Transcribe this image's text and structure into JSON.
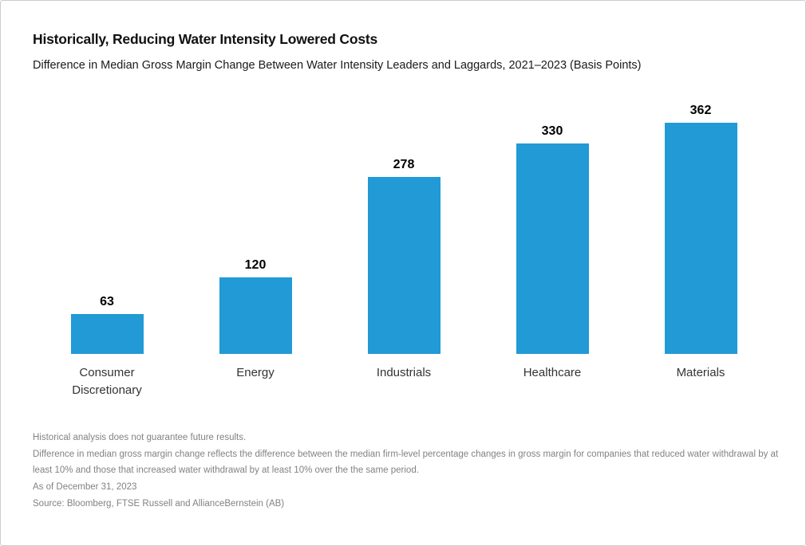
{
  "header": {
    "title": "Historically, Reducing Water Intensity Lowered Costs",
    "subtitle": "Difference in Median Gross Margin Change Between Water Intensity Leaders and Laggards, 2021–2023 (Basis Points)"
  },
  "chart_data": {
    "type": "bar",
    "title": "Historically, Reducing Water Intensity Lowered Costs",
    "subtitle": "Difference in Median Gross Margin Change Between Water Intensity Leaders and Laggards, 2021–2023 (Basis Points)",
    "categories": [
      "Consumer Discretionary",
      "Energy",
      "Industrials",
      "Healthcare",
      "Materials"
    ],
    "values": [
      63,
      120,
      278,
      330,
      362
    ],
    "xlabel": "",
    "ylabel": "Basis Points",
    "ylim": [
      0,
      400
    ],
    "grid": false,
    "legend": "none",
    "value_labels": true,
    "bar_color": "#219AD6"
  },
  "footnotes": {
    "line1": "Historical analysis does not guarantee future results.",
    "line2": "Difference in median gross margin change reflects the difference between the median firm-level percentage changes in gross margin for companies that reduced water withdrawal by at least 10% and those that increased water withdrawal by at least 10% over the the same period.",
    "line3": "As of December 31, 2023",
    "line4": "Source: Bloomberg, FTSE Russell and AllianceBernstein (AB)"
  }
}
